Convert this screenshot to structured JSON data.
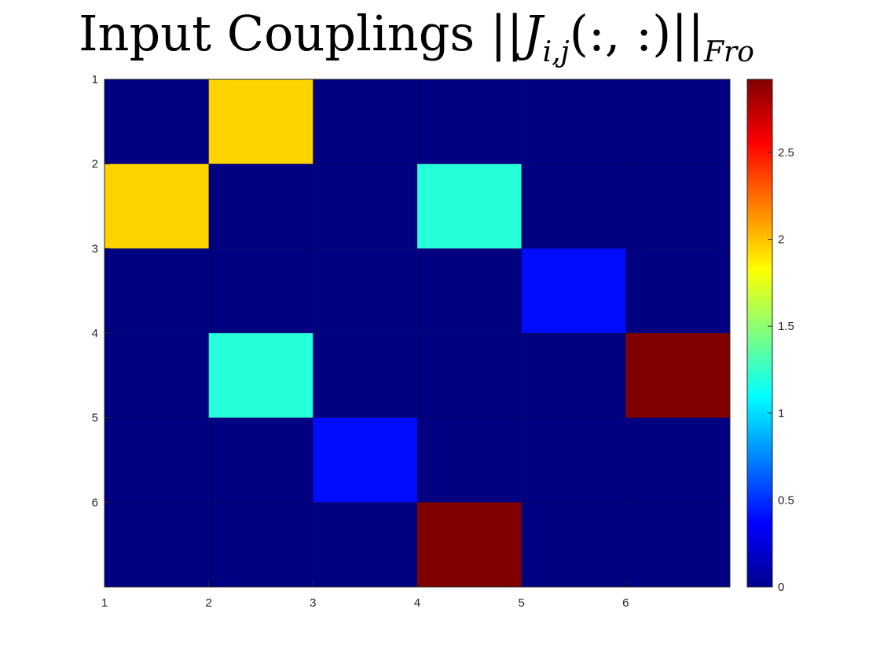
{
  "title": {
    "prefix": "Input Couplings ",
    "norm_open": "||",
    "symbol": "J",
    "subscript": "i,j",
    "argument": "(:, :)",
    "norm_close": "||",
    "norm_subscript": "Fro"
  },
  "chart_data": {
    "type": "heatmap",
    "title": "Input Couplings ||J_{i,j}(:, :)||_{Fro}",
    "xlabel": "",
    "ylabel": "",
    "x_ticks": [
      "1",
      "2",
      "3",
      "4",
      "5",
      "6"
    ],
    "y_ticks": [
      "1",
      "2",
      "3",
      "4",
      "5",
      "6"
    ],
    "colormap": "jet",
    "clim": [
      0,
      2.92
    ],
    "colorbar_ticks": [
      "0",
      "0.5",
      "1",
      "1.5",
      "2",
      "2.5"
    ],
    "colorbar_tick_values": [
      0,
      0.5,
      1,
      1.5,
      2,
      2.5
    ],
    "grid": true,
    "matrix": [
      [
        0,
        1.95,
        0,
        0,
        0,
        0
      ],
      [
        1.95,
        0,
        0,
        1.2,
        0,
        0
      ],
      [
        0,
        0,
        0,
        0,
        0.4,
        0
      ],
      [
        0,
        1.2,
        0,
        0,
        0,
        2.92
      ],
      [
        0,
        0,
        0.4,
        0,
        0,
        0
      ],
      [
        0,
        0,
        0,
        2.92,
        0,
        0
      ]
    ]
  }
}
